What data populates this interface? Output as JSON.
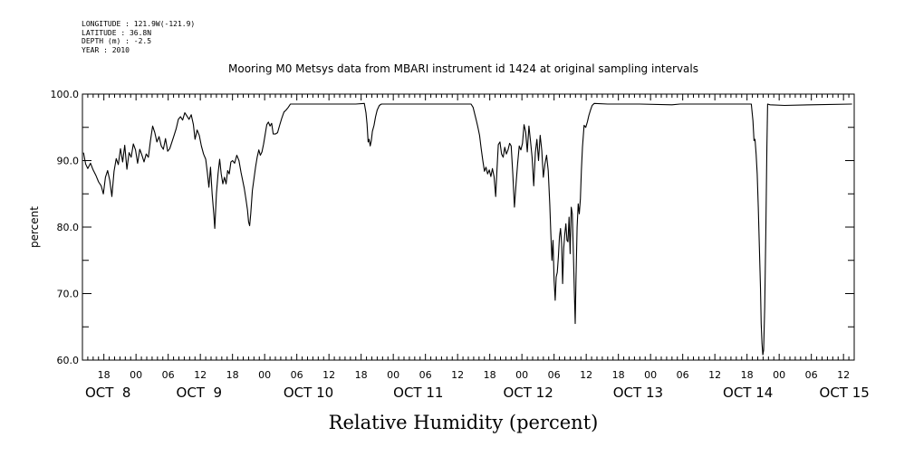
{
  "metadata": [
    "LONGITUDE : 121.9W(-121.9)",
    "LATITUDE : 36.8N",
    "DEPTH (m) : -2.5",
    "YEAR : 2010"
  ],
  "colors": {
    "line": "#000000",
    "background": "#ffffff",
    "axis": "#000000"
  },
  "chart_data": {
    "type": "line",
    "title": "Mooring M0 Metsys data from MBARI instrument id 1424 at original sampling intervals",
    "xlabel": "Relative Humidity (percent)",
    "ylabel": "percent",
    "x_units": "hours since Oct 8 2010 00:00",
    "xlim": [
      14,
      158
    ],
    "ylim": [
      60,
      100
    ],
    "y_ticks": [
      60,
      70,
      80,
      90,
      100
    ],
    "x_tick_hours": [
      18,
      24,
      30,
      36,
      42,
      48,
      54,
      60,
      66,
      72,
      78,
      84,
      90,
      96,
      102,
      108,
      114,
      120,
      126,
      132,
      138,
      144,
      150,
      156
    ],
    "x_tick_labels": [
      "18",
      "00",
      "06",
      "12",
      "18",
      "00",
      "06",
      "12",
      "18",
      "00",
      "06",
      "12",
      "18",
      "00",
      "06",
      "12",
      "18",
      "00",
      "06",
      "12",
      "18",
      "00",
      "06",
      "12"
    ],
    "date_labels": [
      {
        "text": "OCT  8",
        "hour": 14.5
      },
      {
        "text": "OCT  9",
        "hour": 31.5
      },
      {
        "text": "OCT 10",
        "hour": 51.5
      },
      {
        "text": "OCT 11",
        "hour": 72
      },
      {
        "text": "OCT 12",
        "hour": 92.5
      },
      {
        "text": "OCT 13",
        "hour": 113
      },
      {
        "text": "OCT 14",
        "hour": 133.5
      },
      {
        "text": "OCT 15",
        "hour": 151.5
      }
    ],
    "grid": false,
    "series": [
      {
        "points": [
          [
            14.2,
            91.2
          ],
          [
            14.6,
            89.5
          ],
          [
            15.0,
            88.8
          ],
          [
            15.5,
            89.6
          ],
          [
            16.0,
            88.6
          ],
          [
            16.5,
            87.8
          ],
          [
            17.0,
            86.8
          ],
          [
            17.5,
            86.2
          ],
          [
            17.9,
            85.0
          ],
          [
            18.3,
            87.5
          ],
          [
            18.7,
            88.5
          ],
          [
            19.1,
            87.0
          ],
          [
            19.5,
            84.6
          ],
          [
            19.9,
            88.4
          ],
          [
            20.3,
            90.3
          ],
          [
            20.7,
            89.4
          ],
          [
            21.1,
            91.8
          ],
          [
            21.5,
            89.8
          ],
          [
            21.9,
            92.3
          ],
          [
            22.3,
            88.7
          ],
          [
            22.7,
            91.2
          ],
          [
            23.1,
            90.5
          ],
          [
            23.5,
            92.5
          ],
          [
            23.9,
            91.6
          ],
          [
            24.3,
            89.6
          ],
          [
            24.7,
            91.7
          ],
          [
            25.1,
            90.8
          ],
          [
            25.5,
            89.8
          ],
          [
            25.9,
            91.0
          ],
          [
            26.3,
            90.5
          ],
          [
            26.7,
            93.0
          ],
          [
            27.1,
            95.2
          ],
          [
            27.5,
            94.2
          ],
          [
            27.9,
            92.8
          ],
          [
            28.3,
            93.6
          ],
          [
            28.7,
            92.2
          ],
          [
            29.1,
            91.7
          ],
          [
            29.5,
            93.3
          ],
          [
            29.9,
            91.4
          ],
          [
            30.3,
            91.8
          ],
          [
            30.7,
            92.8
          ],
          [
            31.1,
            93.8
          ],
          [
            31.5,
            94.8
          ],
          [
            31.9,
            96.2
          ],
          [
            32.3,
            96.6
          ],
          [
            32.7,
            96.1
          ],
          [
            33.1,
            97.2
          ],
          [
            33.5,
            96.7
          ],
          [
            33.9,
            96.2
          ],
          [
            34.3,
            96.9
          ],
          [
            34.7,
            95.4
          ],
          [
            35.0,
            93.2
          ],
          [
            35.4,
            94.6
          ],
          [
            35.8,
            93.8
          ],
          [
            36.2,
            92.2
          ],
          [
            36.6,
            91.0
          ],
          [
            37.0,
            90.2
          ],
          [
            37.3,
            88.2
          ],
          [
            37.6,
            86.0
          ],
          [
            37.9,
            89.0
          ],
          [
            38.2,
            85.0
          ],
          [
            38.5,
            82.0
          ],
          [
            38.7,
            79.8
          ],
          [
            39.0,
            85.0
          ],
          [
            39.3,
            88.0
          ],
          [
            39.6,
            90.2
          ],
          [
            39.9,
            88.0
          ],
          [
            40.2,
            86.5
          ],
          [
            40.5,
            87.5
          ],
          [
            40.8,
            86.5
          ],
          [
            41.1,
            88.5
          ],
          [
            41.4,
            88.0
          ],
          [
            41.7,
            89.8
          ],
          [
            42.0,
            90.0
          ],
          [
            42.4,
            89.6
          ],
          [
            42.8,
            90.8
          ],
          [
            43.2,
            90.0
          ],
          [
            43.6,
            88.2
          ],
          [
            43.9,
            87.0
          ],
          [
            44.2,
            85.8
          ],
          [
            44.5,
            84.2
          ],
          [
            44.8,
            82.6
          ],
          [
            45.0,
            80.8
          ],
          [
            45.2,
            80.2
          ],
          [
            45.4,
            82.0
          ],
          [
            45.7,
            85.5
          ],
          [
            46.0,
            87.2
          ],
          [
            46.3,
            89.0
          ],
          [
            46.6,
            90.5
          ],
          [
            46.9,
            91.6
          ],
          [
            47.2,
            90.8
          ],
          [
            47.5,
            91.3
          ],
          [
            47.8,
            92.5
          ],
          [
            48.1,
            94.0
          ],
          [
            48.4,
            95.4
          ],
          [
            48.7,
            95.8
          ],
          [
            49.0,
            95.2
          ],
          [
            49.3,
            95.6
          ],
          [
            49.6,
            94.0
          ],
          [
            50.0,
            94.0
          ],
          [
            50.4,
            94.2
          ],
          [
            50.8,
            95.3
          ],
          [
            51.2,
            96.4
          ],
          [
            51.6,
            97.3
          ],
          [
            52.0,
            97.6
          ],
          [
            52.4,
            98.0
          ],
          [
            52.8,
            98.5
          ],
          [
            53.2,
            98.5
          ],
          [
            56.0,
            98.5
          ],
          [
            60.0,
            98.5
          ],
          [
            65.0,
            98.5
          ],
          [
            66.6,
            98.6
          ],
          [
            66.9,
            97.2
          ],
          [
            67.1,
            95.5
          ],
          [
            67.3,
            92.8
          ],
          [
            67.5,
            93.2
          ],
          [
            67.7,
            92.2
          ],
          [
            67.9,
            93.0
          ],
          [
            68.1,
            94.4
          ],
          [
            68.4,
            95.3
          ],
          [
            68.7,
            96.6
          ],
          [
            69.0,
            97.6
          ],
          [
            69.4,
            98.3
          ],
          [
            69.8,
            98.5
          ],
          [
            72.0,
            98.5
          ],
          [
            80.0,
            98.5
          ],
          [
            86.5,
            98.5
          ],
          [
            86.9,
            98.0
          ],
          [
            87.2,
            97.0
          ],
          [
            87.5,
            96.0
          ],
          [
            87.8,
            95.0
          ],
          [
            88.1,
            93.8
          ],
          [
            88.4,
            91.8
          ],
          [
            88.7,
            90.0
          ],
          [
            89.0,
            88.4
          ],
          [
            89.3,
            89.0
          ],
          [
            89.6,
            88.0
          ],
          [
            89.9,
            88.6
          ],
          [
            90.2,
            87.6
          ],
          [
            90.5,
            88.8
          ],
          [
            90.8,
            87.6
          ],
          [
            91.1,
            84.6
          ],
          [
            91.3,
            88.0
          ],
          [
            91.6,
            92.4
          ],
          [
            91.9,
            92.8
          ],
          [
            92.2,
            91.0
          ],
          [
            92.5,
            90.5
          ],
          [
            92.8,
            92.0
          ],
          [
            93.1,
            91.0
          ],
          [
            93.4,
            91.6
          ],
          [
            93.7,
            92.6
          ],
          [
            94.0,
            92.2
          ],
          [
            94.3,
            88.0
          ],
          [
            94.6,
            83.0
          ],
          [
            94.9,
            86.5
          ],
          [
            95.2,
            89.5
          ],
          [
            95.5,
            92.2
          ],
          [
            95.8,
            91.6
          ],
          [
            96.1,
            92.6
          ],
          [
            96.4,
            95.4
          ],
          [
            96.7,
            94.3
          ],
          [
            97.0,
            91.3
          ],
          [
            97.3,
            95.2
          ],
          [
            97.6,
            93.0
          ],
          [
            97.9,
            90.5
          ],
          [
            98.2,
            86.2
          ],
          [
            98.5,
            91.2
          ],
          [
            98.8,
            93.2
          ],
          [
            99.1,
            90.0
          ],
          [
            99.4,
            93.8
          ],
          [
            99.7,
            91.5
          ],
          [
            100.0,
            87.5
          ],
          [
            100.3,
            89.5
          ],
          [
            100.6,
            90.8
          ],
          [
            100.9,
            88.5
          ],
          [
            101.2,
            83.5
          ],
          [
            101.4,
            79.0
          ],
          [
            101.6,
            75.0
          ],
          [
            101.8,
            78.0
          ],
          [
            102.0,
            72.0
          ],
          [
            102.2,
            69.0
          ],
          [
            102.4,
            72.5
          ],
          [
            102.6,
            73.2
          ],
          [
            102.8,
            75.5
          ],
          [
            103.0,
            78.5
          ],
          [
            103.2,
            79.8
          ],
          [
            103.4,
            77.5
          ],
          [
            103.6,
            71.5
          ],
          [
            103.8,
            76.8
          ],
          [
            104.0,
            79.0
          ],
          [
            104.2,
            80.5
          ],
          [
            104.4,
            78.0
          ],
          [
            104.6,
            77.8
          ],
          [
            104.8,
            81.5
          ],
          [
            105.0,
            76.0
          ],
          [
            105.2,
            83.0
          ],
          [
            105.4,
            82.0
          ],
          [
            105.6,
            76.0
          ],
          [
            105.8,
            70.0
          ],
          [
            105.95,
            65.5
          ],
          [
            106.1,
            72.5
          ],
          [
            106.3,
            80.0
          ],
          [
            106.5,
            83.5
          ],
          [
            106.7,
            82.0
          ],
          [
            106.9,
            84.2
          ],
          [
            107.1,
            88.5
          ],
          [
            107.3,
            92.0
          ],
          [
            107.6,
            95.3
          ],
          [
            107.9,
            95.0
          ],
          [
            108.2,
            95.8
          ],
          [
            108.5,
            96.8
          ],
          [
            108.8,
            97.6
          ],
          [
            109.1,
            98.3
          ],
          [
            109.5,
            98.6
          ],
          [
            112.0,
            98.5
          ],
          [
            118.0,
            98.5
          ],
          [
            124.0,
            98.4
          ],
          [
            125.5,
            98.5
          ],
          [
            130.0,
            98.5
          ],
          [
            138.0,
            98.5
          ],
          [
            138.8,
            98.5
          ],
          [
            139.1,
            96.0
          ],
          [
            139.3,
            93.0
          ],
          [
            139.5,
            93.2
          ],
          [
            139.7,
            91.0
          ],
          [
            139.9,
            88.0
          ],
          [
            140.1,
            83.0
          ],
          [
            140.3,
            77.0
          ],
          [
            140.5,
            71.0
          ],
          [
            140.65,
            65.5
          ],
          [
            140.8,
            62.5
          ],
          [
            140.95,
            60.8
          ],
          [
            141.1,
            61.5
          ],
          [
            141.3,
            68.0
          ],
          [
            141.5,
            79.0
          ],
          [
            141.7,
            92.0
          ],
          [
            141.85,
            98.5
          ],
          [
            142.3,
            98.4
          ],
          [
            145.0,
            98.3
          ],
          [
            150.0,
            98.4
          ],
          [
            157.6,
            98.5
          ]
        ]
      }
    ]
  }
}
